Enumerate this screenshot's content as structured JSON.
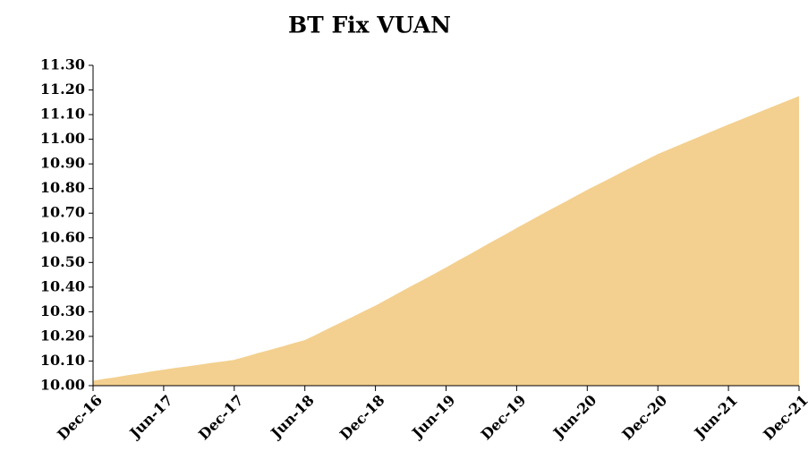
{
  "chart_data": {
    "type": "area",
    "title": "BT Fix VUAN",
    "categories": [
      "Dec-16",
      null,
      null,
      null,
      null,
      null,
      "Jun-17",
      null,
      null,
      null,
      null,
      null,
      "Dec-17",
      null,
      null,
      null,
      null,
      null,
      "Jun-18",
      null,
      null,
      null,
      null,
      null,
      "Dec-18",
      null,
      null,
      null,
      null,
      null,
      "Jun-19",
      null,
      null,
      null,
      null,
      null,
      "Dec-19",
      null,
      null,
      null,
      null,
      null,
      "Jun-20",
      null,
      null,
      null,
      null,
      null,
      "Dec-20",
      null,
      null,
      null,
      null,
      null,
      "Jun-21",
      null,
      null,
      null,
      null,
      null,
      "Dec-21"
    ],
    "values": [
      10.02,
      10.028,
      10.035,
      10.043,
      10.05,
      10.058,
      10.065,
      10.072,
      10.078,
      10.085,
      10.092,
      10.098,
      10.105,
      10.118,
      10.132,
      10.145,
      10.158,
      10.172,
      10.185,
      10.208,
      10.232,
      10.255,
      10.278,
      10.302,
      10.325,
      10.351,
      10.377,
      10.403,
      10.428,
      10.454,
      10.48,
      10.507,
      10.533,
      10.56,
      10.587,
      10.613,
      10.64,
      10.666,
      10.692,
      10.718,
      10.743,
      10.769,
      10.795,
      10.819,
      10.843,
      10.868,
      10.892,
      10.916,
      10.94,
      10.96,
      10.98,
      11.0,
      11.02,
      11.04,
      11.06,
      11.079,
      11.098,
      11.118,
      11.137,
      11.156,
      11.175
    ],
    "color": "#f3d08f",
    "ylim": [
      10.0,
      11.3
    ],
    "yticks": [
      {
        "value": 10.0,
        "label": "10.00"
      },
      {
        "value": 10.1,
        "label": "10.10"
      },
      {
        "value": 10.2,
        "label": "10.20"
      },
      {
        "value": 10.3,
        "label": "10.30"
      },
      {
        "value": 10.4,
        "label": "10.40"
      },
      {
        "value": 10.5,
        "label": "10.50"
      },
      {
        "value": 10.6,
        "label": "10.60"
      },
      {
        "value": 10.7,
        "label": "10.70"
      },
      {
        "value": 10.8,
        "label": "10.80"
      },
      {
        "value": 10.9,
        "label": "10.90"
      },
      {
        "value": 11.0,
        "label": "11.00"
      },
      {
        "value": 11.1,
        "label": "11.10"
      },
      {
        "value": 11.2,
        "label": "11.20"
      },
      {
        "value": 11.3,
        "label": "11.30"
      }
    ],
    "grid": false
  }
}
